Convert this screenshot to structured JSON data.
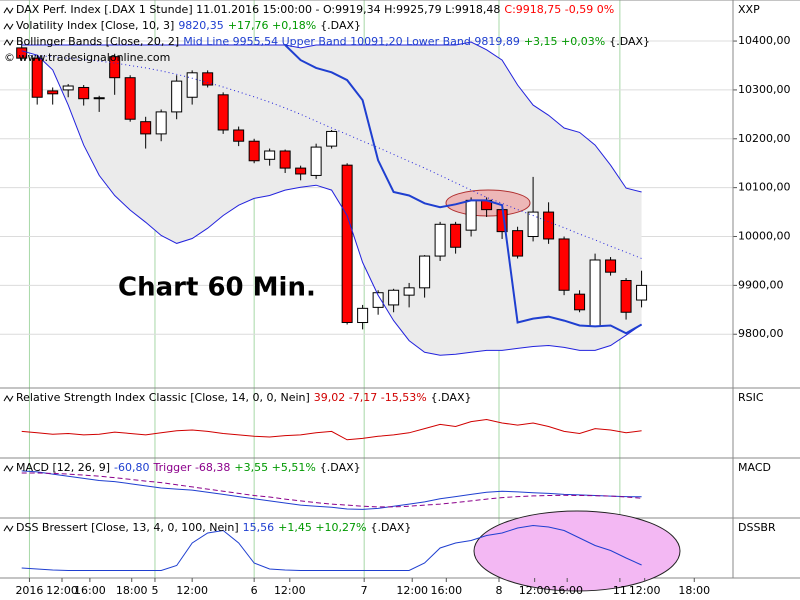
{
  "chart_data": [
    {
      "type": "candlestick",
      "header": [
        [
          {
            "text": "DAX Perf. Index [.DAX  1 Stunde] 11.01.2016 15:00:00 - O:9919,34 H:9925,79 L:9918,48",
            "color": "#000000"
          },
          {
            "text": "C:9918,75 -0,59 0%",
            "color": "#ff0000"
          }
        ],
        [
          {
            "text": "Volatility Index [Close, 10, 3]",
            "color": "#000000"
          },
          {
            "text": "9820,35",
            "color": "#1f3fd0"
          },
          {
            "text": "+17,76 +0,18%",
            "color": "#009900"
          },
          {
            "text": "{.DAX}",
            "color": "#000000"
          }
        ],
        [
          {
            "text": "Bollinger Bands [Close, 20, 2]",
            "color": "#000000"
          },
          {
            "text": "Mid Line 9955,54 Upper Band 10091,20 Lower Band 9819,89",
            "color": "#1f3fd0"
          },
          {
            "text": "+3,15 +0,03%",
            "color": "#009900"
          },
          {
            "text": "{.DAX}",
            "color": "#000000"
          }
        ]
      ],
      "watermark": "© www.tradesignalonline.com",
      "annotation": "Chart 60 Min.",
      "side_label": "XXP",
      "x": [
        0,
        1,
        2,
        3,
        4,
        5,
        6,
        7,
        8,
        9,
        10,
        11,
        12,
        13,
        14,
        15,
        16,
        17,
        18,
        19,
        20,
        21,
        22,
        23,
        24,
        25,
        26,
        27,
        28,
        29,
        30,
        31,
        32,
        33,
        34,
        35,
        36,
        37,
        38,
        39,
        40
      ],
      "xlim": [
        -1.4,
        45.9
      ],
      "xticks": [
        {
          "value": 0.5,
          "label": "2016"
        },
        {
          "value": 2.6,
          "label": "12:00"
        },
        {
          "value": 4.4,
          "label": "16:00"
        },
        {
          "value": 7.1,
          "label": "18:00"
        },
        {
          "value": 8.6,
          "label": "5"
        },
        {
          "value": 11,
          "label": "12:00"
        },
        {
          "value": 15,
          "label": "6"
        },
        {
          "value": 17.3,
          "label": "12:00"
        },
        {
          "value": 22.1,
          "label": "7"
        },
        {
          "value": 25.2,
          "label": "12:00"
        },
        {
          "value": 27.4,
          "label": "16:00"
        },
        {
          "value": 30.8,
          "label": "8"
        },
        {
          "value": 33.1,
          "label": "12:00"
        },
        {
          "value": 35.2,
          "label": "16:00"
        },
        {
          "value": 38.6,
          "label": "11"
        },
        {
          "value": 40.2,
          "label": "12:00"
        },
        {
          "value": 43.4,
          "label": "18:00"
        }
      ],
      "ylim": [
        9690,
        10484
      ],
      "yticks": [
        {
          "value": 10400,
          "label": "10400,00"
        },
        {
          "value": 10300,
          "label": "10300,00"
        },
        {
          "value": 10200,
          "label": "10200,00"
        },
        {
          "value": 10100,
          "label": "10100,00"
        },
        {
          "value": 10000,
          "label": "10000,00"
        },
        {
          "value": 9900,
          "label": "9900,00"
        },
        {
          "value": 9800,
          "label": "9800,00"
        }
      ],
      "grid": true,
      "up_color": "#ffffff",
      "down_color": "#ff0000",
      "open": [
        10386,
        10365,
        10298,
        10300,
        10305,
        10284,
        10368,
        10325,
        10235,
        10210,
        10255,
        10285,
        10335,
        10290,
        10218,
        10195,
        10158,
        10175,
        10140,
        10125,
        10185,
        10146,
        9824,
        9855,
        9860,
        9880,
        9895,
        9960,
        10025,
        10013,
        10074,
        10055,
        10012,
        10000,
        10050,
        9995,
        9882,
        9816,
        9952,
        9910,
        9870
      ],
      "high": [
        10400,
        10372,
        10305,
        10312,
        10310,
        10288,
        10374,
        10330,
        10245,
        10260,
        10330,
        10340,
        10340,
        10295,
        10225,
        10200,
        10180,
        10178,
        10145,
        10190,
        10218,
        10150,
        9860,
        9890,
        9893,
        9905,
        9962,
        10030,
        10030,
        10080,
        10080,
        10065,
        10020,
        10122,
        10070,
        10000,
        9890,
        9965,
        9958,
        9915,
        9930
      ],
      "low": [
        10360,
        10270,
        10270,
        10285,
        10268,
        10255,
        10290,
        10235,
        10180,
        10195,
        10240,
        10270,
        10305,
        10210,
        10185,
        10150,
        10145,
        10130,
        10115,
        10118,
        10180,
        9820,
        9810,
        9840,
        9845,
        9855,
        9875,
        9950,
        9965,
        10000,
        10040,
        9995,
        9955,
        9990,
        9985,
        9880,
        9845,
        9815,
        9920,
        9830,
        9855
      ],
      "close": [
        10365,
        10285,
        10292,
        10308,
        10282,
        10283,
        10325,
        10240,
        10210,
        10255,
        10318,
        10335,
        10310,
        10218,
        10195,
        10155,
        10175,
        10140,
        10128,
        10183,
        10215,
        9824,
        9853,
        9885,
        9890,
        9895,
        9960,
        10025,
        9978,
        10074,
        10055,
        10010,
        9960,
        10050,
        9995,
        9890,
        9850,
        9952,
        9927,
        9845,
        9900
      ],
      "band_fill": "#ebebeb",
      "series": [
        {
          "color": "#2222dd",
          "style": "solid",
          "width": 1,
          "values": [
            10392,
            10392,
            10392,
            10392,
            10392,
            10392,
            10392,
            10392,
            10392,
            10392,
            10392,
            10392,
            10392,
            10392,
            10392,
            10392,
            10392,
            10392,
            10386,
            10392,
            10392,
            10392,
            10392,
            10392,
            10392,
            10392,
            10392,
            10392,
            10392,
            10398,
            10382,
            10361,
            10310,
            10269,
            10248,
            10222,
            10213,
            10187,
            10146,
            10099,
            10091
          ]
        },
        {
          "color": "#2222dd",
          "style": "dotted",
          "width": 1,
          "values": [
            10371,
            10370,
            10368,
            10365,
            10362,
            10359,
            10355,
            10350,
            10345,
            10339,
            10332,
            10324,
            10315,
            10306,
            10296,
            10286,
            10275,
            10263,
            10250,
            10236,
            10222,
            10209,
            10195,
            10182,
            10168,
            10154,
            10140,
            10125,
            10110,
            10095,
            10080,
            10068,
            10055,
            10043,
            10030,
            10018,
            10005,
            9993,
            9980,
            9968,
            9955
          ]
        },
        {
          "color": "#2222dd",
          "style": "solid",
          "width": 1,
          "values": [
            10380,
            10371,
            10341,
            10269,
            10187,
            10125,
            10084,
            10054,
            10029,
            10002,
            9986,
            9996,
            10017,
            10043,
            10064,
            10078,
            10084,
            10095,
            10101,
            10105,
            10095,
            10043,
            9947,
            9880,
            9828,
            9787,
            9763,
            9757,
            9759,
            9763,
            9767,
            9767,
            9771,
            9775,
            9777,
            9773,
            9767,
            9767,
            9777,
            9798,
            9820
          ]
        },
        {
          "color": "#1f3fd0",
          "style": "solid",
          "width": 2,
          "values": [
            null,
            null,
            null,
            null,
            null,
            null,
            null,
            null,
            null,
            null,
            null,
            null,
            null,
            null,
            null,
            null,
            null,
            10392,
            10361,
            10345,
            10336,
            10320,
            10279,
            10156,
            10091,
            10084,
            10068,
            10060,
            10066,
            10074,
            10074,
            10064,
            9824,
            9832,
            9836,
            9828,
            9818,
            9816,
            9818,
            9802,
            9820
          ]
        }
      ]
    },
    {
      "type": "line",
      "header": [
        [
          {
            "text": "Relative Strength Index Classic [Close, 14, 0, 0, Nein]",
            "color": "#000000"
          },
          {
            "text": "39,02 -7,17 -15,53%",
            "color": "#d00000"
          },
          {
            "text": "{.DAX}",
            "color": "#000000"
          }
        ]
      ],
      "side_label": "RSIC",
      "ylim": [
        0,
        100
      ],
      "series": [
        {
          "color": "#d00000",
          "style": "solid",
          "width": 1,
          "values": [
            38,
            36,
            34,
            35,
            33,
            34,
            37,
            35,
            33,
            36,
            39,
            40,
            38,
            35,
            33,
            31,
            30,
            32,
            33,
            36,
            38,
            26,
            28,
            31,
            33,
            36,
            42,
            48,
            45,
            52,
            55,
            50,
            47,
            50,
            45,
            38,
            35,
            42,
            40,
            36,
            39
          ]
        }
      ]
    },
    {
      "type": "line",
      "header": [
        [
          {
            "text": "MACD [12, 26, 9]",
            "color": "#000000"
          },
          {
            "text": "-60,80",
            "color": "#1f3fd0"
          },
          {
            "text": "Trigger -68,38",
            "color": "#8b008b"
          },
          {
            "text": "+3,55 +5,51%",
            "color": "#009900"
          },
          {
            "text": "{.DAX}",
            "color": "#000000"
          }
        ]
      ],
      "side_label": "MACD",
      "ylim": [
        -160,
        120
      ],
      "series": [
        {
          "color": "#1f3fd0",
          "style": "solid",
          "width": 1,
          "values": [
            60,
            55,
            45,
            35,
            25,
            15,
            10,
            0,
            -10,
            -20,
            -25,
            -30,
            -40,
            -50,
            -60,
            -70,
            -80,
            -90,
            -100,
            -105,
            -110,
            -118,
            -120,
            -115,
            -105,
            -95,
            -85,
            -70,
            -60,
            -50,
            -40,
            -35,
            -38,
            -42,
            -45,
            -50,
            -52,
            -55,
            -58,
            -60,
            -61
          ]
        },
        {
          "color": "#8b008b",
          "style": "dashed",
          "width": 1,
          "values": [
            50,
            50,
            48,
            45,
            40,
            35,
            28,
            20,
            12,
            5,
            -5,
            -15,
            -25,
            -35,
            -45,
            -55,
            -62,
            -72,
            -80,
            -88,
            -95,
            -100,
            -105,
            -108,
            -108,
            -105,
            -100,
            -95,
            -88,
            -80,
            -72,
            -65,
            -60,
            -57,
            -55,
            -54,
            -55,
            -56,
            -58,
            -62,
            -68
          ]
        }
      ]
    },
    {
      "type": "line",
      "header": [
        [
          {
            "text": "DSS Bressert [Close, 13, 4, 0, 100, Nein]",
            "color": "#000000"
          },
          {
            "text": "15,56",
            "color": "#1f3fd0"
          },
          {
            "text": "+1,45 +10,27%",
            "color": "#009900"
          },
          {
            "text": "{.DAX}",
            "color": "#000000"
          }
        ]
      ],
      "side_label": "DSSBR",
      "ylim": [
        -10,
        110
      ],
      "series": [
        {
          "color": "#1f3fd0",
          "style": "solid",
          "width": 1,
          "values": [
            10,
            8,
            6,
            5,
            5,
            5,
            5,
            5,
            5,
            5,
            15,
            60,
            80,
            85,
            60,
            20,
            8,
            6,
            5,
            5,
            5,
            5,
            5,
            5,
            5,
            5,
            20,
            50,
            60,
            65,
            75,
            80,
            90,
            95,
            92,
            85,
            70,
            55,
            45,
            30,
            16
          ]
        }
      ]
    }
  ]
}
